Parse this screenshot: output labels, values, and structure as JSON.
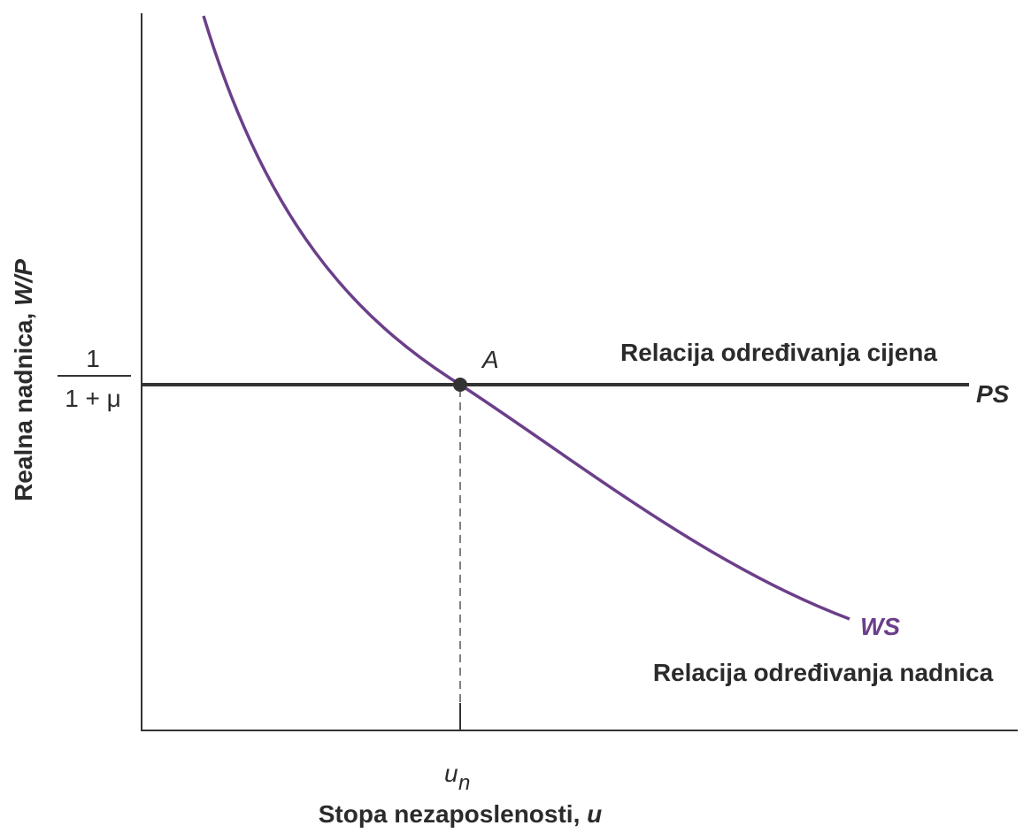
{
  "axes": {
    "y_label": {
      "text": "Realna nadnica, ",
      "variable": "W/P"
    },
    "x_label": {
      "text": "Stopa nezaposlenosti, ",
      "variable": "u"
    },
    "y_tick": {
      "numerator": "1",
      "denominator": "1 + μ"
    },
    "x_tick": {
      "symbol": "u",
      "subscript": "n"
    }
  },
  "curves": {
    "ps": {
      "label": "PS",
      "description": "Relacija određivanja cijena"
    },
    "ws": {
      "label": "WS",
      "description": "Relacija određivanja nadnica"
    }
  },
  "point": {
    "label": "A"
  }
}
